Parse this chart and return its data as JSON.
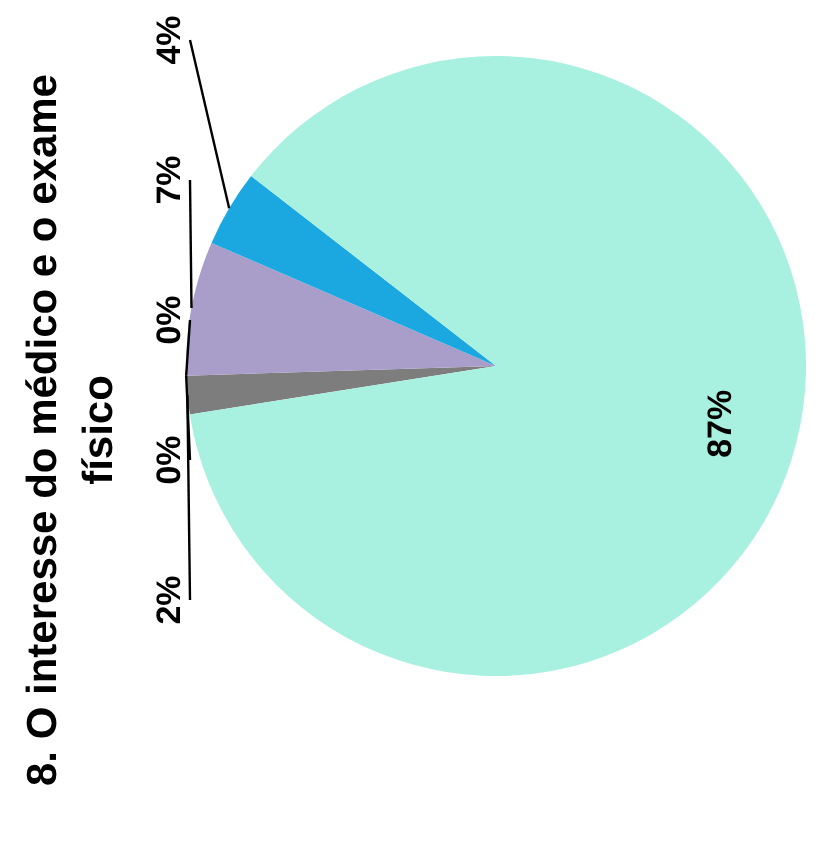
{
  "chart_data": {
    "type": "pie",
    "title": "8. O interesse do médico e o exame físico",
    "categories": [
      null,
      null,
      null,
      null,
      null,
      null
    ],
    "values": [
      2,
      0,
      0,
      7,
      4,
      87
    ],
    "colors": [
      "#7d7d7d",
      "#9a9a9a",
      "#b0b0b0",
      "#a99dc9",
      "#1ba8e0",
      "#a8f0e0"
    ],
    "value_labels": [
      "2%",
      "0%",
      "0%",
      "7%",
      "4%",
      "87%"
    ]
  }
}
